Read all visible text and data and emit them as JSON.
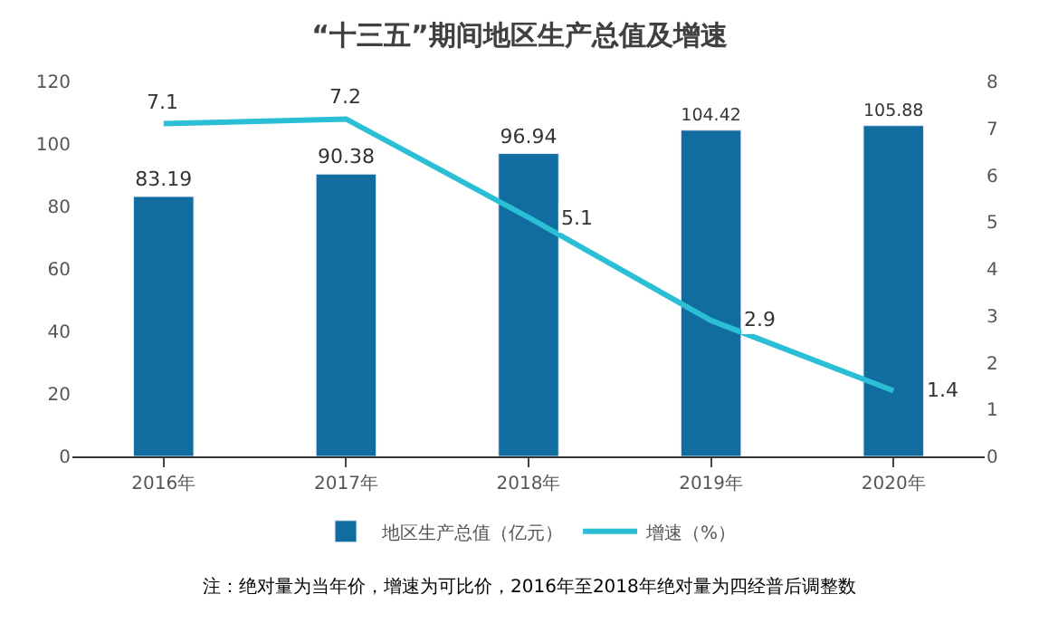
{
  "chart_data": {
    "type": "bar",
    "title": "“十三五”期间地区生产总值及增速",
    "categories": [
      "2016年",
      "2017年",
      "2018年",
      "2019年",
      "2020年"
    ],
    "series": [
      {
        "name": "地区生产总值（亿元）",
        "color": "#116ca0",
        "values": [
          83.19,
          90.38,
          96.94,
          104.42,
          105.88
        ]
      },
      {
        "name": "增速（%）",
        "type": "line",
        "axis": "y2",
        "color": "#2bbfd6",
        "values": [
          7.1,
          7.2,
          5.1,
          2.9,
          1.4
        ],
        "marker": "none"
      }
    ],
    "ylim": [
      0,
      120
    ],
    "yticks": [
      0,
      20,
      40,
      60,
      80,
      100,
      120
    ],
    "y2lim": [
      0,
      8
    ],
    "y2ticks": [
      0,
      1,
      2,
      3,
      4,
      5,
      6,
      7,
      8
    ],
    "data_labels": true,
    "legend": "bottom",
    "annotations": [
      "注：绝对量为当年价，增速为可比价，2016年至2018年绝对量为四经普后调整数"
    ]
  }
}
